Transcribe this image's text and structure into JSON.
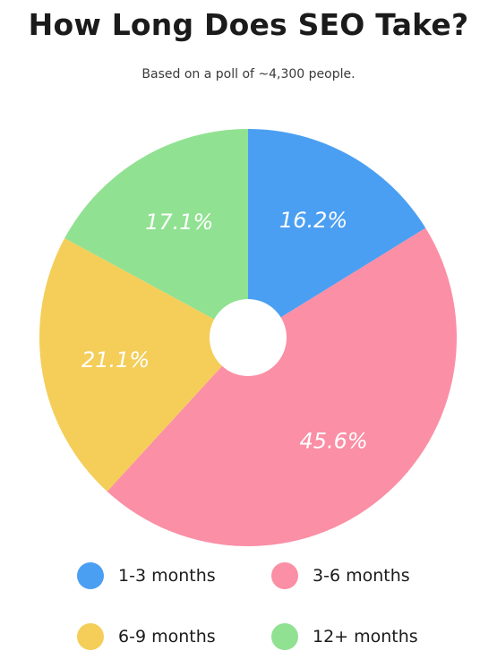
{
  "header": {
    "title": "How Long Does SEO Take?",
    "subtitle": "Based on a poll of ~4,300 people."
  },
  "chart_data": {
    "type": "pie",
    "title": "How Long Does SEO Take?",
    "subtitle": "Based on a poll of ~4,300 people.",
    "legend_placement": "bottom",
    "slices": [
      {
        "label": "1-3 months",
        "value": 16.2,
        "display": "16.2%",
        "color": "#4b9ff2"
      },
      {
        "label": "3-6 months",
        "value": 45.6,
        "display": "45.6%",
        "color": "#fb8fa5"
      },
      {
        "label": "6-9 months",
        "value": 21.1,
        "display": "21.1%",
        "color": "#f4ce59"
      },
      {
        "label": "12+ months",
        "value": 17.1,
        "display": "17.1%",
        "color": "#91e192"
      }
    ]
  }
}
